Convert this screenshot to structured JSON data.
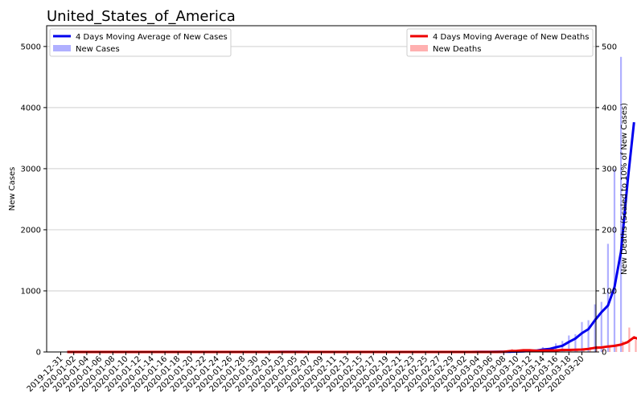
{
  "chart_data": {
    "type": "bar",
    "title": "United_States_of_America",
    "xlabel": "",
    "ylabel": "New Cases",
    "y2label": "New Deaths (Scaled to 10% of New Cases)",
    "ylim": [
      0,
      5340
    ],
    "y2lim": [
      0,
      534
    ],
    "yticks": [
      0,
      1000,
      2000,
      3000,
      4000,
      5000
    ],
    "y2ticks": [
      0,
      100,
      200,
      300,
      400,
      500
    ],
    "grid": true,
    "legend_left": [
      {
        "label": "4 Days Moving Average of New Cases",
        "color": "#0000ee",
        "kind": "line"
      },
      {
        "label": "New Cases",
        "color": "#b0b0ff",
        "kind": "patch"
      }
    ],
    "legend_right": [
      {
        "label": "4 Days Moving Average of New Deaths",
        "color": "#ee0000",
        "kind": "line"
      },
      {
        "label": "New Deaths",
        "color": "#ffb0b0",
        "kind": "patch"
      }
    ],
    "x_tick_labels": [
      "2019-12-31",
      "2020-01-02",
      "2020-01-04",
      "2020-01-06",
      "2020-01-08",
      "2020-01-10",
      "2020-01-12",
      "2020-01-14",
      "2020-01-16",
      "2020-01-18",
      "2020-01-20",
      "2020-01-22",
      "2020-01-24",
      "2020-01-26",
      "2020-01-28",
      "2020-01-30",
      "2020-02-01",
      "2020-02-03",
      "2020-02-05",
      "2020-02-07",
      "2020-02-09",
      "2020-02-11",
      "2020-02-13",
      "2020-02-15",
      "2020-02-17",
      "2020-02-19",
      "2020-02-21",
      "2020-02-23",
      "2020-02-25",
      "2020-02-27",
      "2020-02-29",
      "2020-03-02",
      "2020-03-04",
      "2020-03-06",
      "2020-03-08",
      "2020-03-10",
      "2020-03-12",
      "2020-03-14",
      "2020-03-16",
      "2020-03-18",
      "2020-03-20"
    ],
    "start_date": "2019-12-31",
    "new_cases": [
      0,
      0,
      0,
      0,
      0,
      0,
      0,
      0,
      0,
      0,
      0,
      0,
      0,
      0,
      0,
      0,
      0,
      0,
      0,
      0,
      0,
      0,
      1,
      0,
      1,
      0,
      0,
      0,
      1,
      0,
      1,
      1,
      0,
      0,
      3,
      0,
      0,
      0,
      0,
      0,
      0,
      0,
      0,
      0,
      0,
      0,
      0,
      0,
      0,
      0,
      0,
      0,
      0,
      0,
      0,
      0,
      0,
      0,
      0,
      0,
      0,
      0,
      0,
      0,
      3,
      0,
      2,
      3,
      2,
      9,
      13,
      20,
      30,
      25,
      80,
      60,
      140,
      180,
      270,
      290,
      490,
      520,
      780,
      820,
      1770,
      3000,
      4830
    ],
    "cases_moving_avg": [
      0,
      0,
      0,
      0,
      0,
      0,
      0,
      0,
      0,
      0,
      0,
      0,
      0,
      0,
      0,
      0,
      0,
      0,
      0,
      0,
      0,
      0,
      0,
      0,
      0,
      0,
      0,
      0,
      0,
      0,
      0,
      0,
      0,
      0,
      1,
      1,
      1,
      1,
      0,
      0,
      0,
      0,
      0,
      0,
      0,
      0,
      0,
      0,
      0,
      0,
      0,
      0,
      0,
      0,
      0,
      0,
      0,
      0,
      0,
      0,
      0,
      0,
      0,
      0,
      1,
      1,
      1,
      2,
      2,
      4,
      7,
      11,
      18,
      22,
      39,
      49,
      76,
      101,
      163,
      220,
      308,
      373,
      520,
      650,
      760,
      1060,
      1640,
      2770,
      3760
    ],
    "new_deaths": [
      0,
      0,
      0,
      0,
      0,
      0,
      0,
      0,
      0,
      0,
      0,
      0,
      0,
      0,
      0,
      0,
      0,
      0,
      0,
      0,
      0,
      0,
      0,
      0,
      0,
      0,
      0,
      0,
      0,
      0,
      0,
      0,
      0,
      0,
      0,
      0,
      0,
      0,
      0,
      0,
      0,
      0,
      0,
      0,
      0,
      0,
      0,
      0,
      0,
      0,
      0,
      0,
      0,
      0,
      0,
      0,
      0,
      0,
      0,
      0,
      0,
      0,
      0,
      0,
      0,
      0,
      0,
      0,
      1,
      5,
      1,
      4,
      1,
      2,
      3,
      4,
      2,
      4,
      3,
      5,
      4,
      8,
      10,
      7,
      11,
      12,
      18,
      40,
      20,
      110
    ],
    "deaths_moving_avg": [
      0,
      0,
      0,
      0,
      0,
      0,
      0,
      0,
      0,
      0,
      0,
      0,
      0,
      0,
      0,
      0,
      0,
      0,
      0,
      0,
      0,
      0,
      0,
      0,
      0,
      0,
      0,
      0,
      0,
      0,
      0,
      0,
      0,
      0,
      0,
      0,
      0,
      0,
      0,
      0,
      0,
      0,
      0,
      0,
      0,
      0,
      0,
      0,
      0,
      0,
      0,
      0,
      0,
      0,
      0,
      0,
      0,
      0,
      0,
      0,
      0,
      0,
      0,
      0,
      0,
      0,
      0,
      0,
      0.3,
      1.5,
      1.8,
      2.8,
      2.8,
      2,
      2.5,
      2.5,
      2.5,
      3.3,
      3.3,
      3.5,
      4,
      5,
      6.8,
      7.3,
      9,
      10,
      12,
      16,
      24,
      20,
      45
    ]
  }
}
